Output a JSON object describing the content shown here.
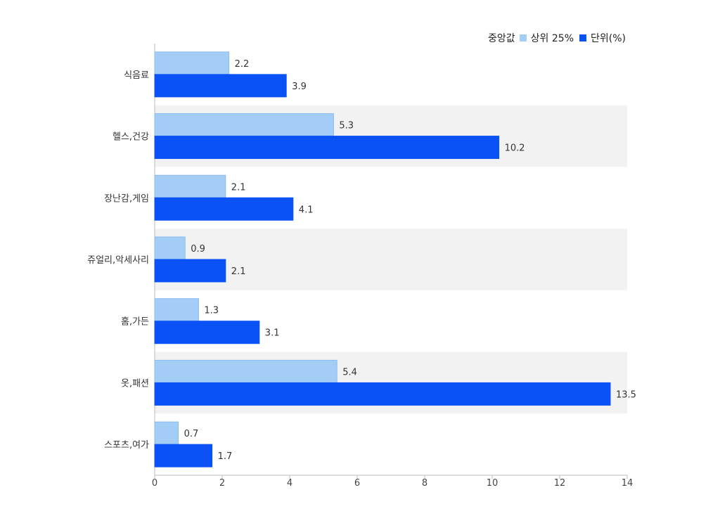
{
  "legend": {
    "prefix": "중앙값",
    "items": [
      {
        "label": "상위 25%",
        "color": "#a3cdf5"
      },
      {
        "label": "단위(%)",
        "color": "#0a52f5"
      }
    ]
  },
  "chart_data": {
    "type": "bar",
    "orientation": "horizontal",
    "categories": [
      "식음료",
      "헬스,건강",
      "장난감,게임",
      "쥬얼리,악세사리",
      "홈,가든",
      "옷,패션",
      "스포츠,여가"
    ],
    "series": [
      {
        "name": "상위 25%",
        "color": "#a3cdf5",
        "values": [
          2.2,
          5.3,
          2.1,
          0.9,
          1.3,
          5.4,
          0.7
        ]
      },
      {
        "name": "단위(%)",
        "color": "#0a52f5",
        "values": [
          3.9,
          10.2,
          4.1,
          2.1,
          3.1,
          13.5,
          1.7
        ]
      }
    ],
    "xlim": [
      0,
      14
    ],
    "xticks": [
      0,
      2,
      4,
      6,
      8,
      10,
      12,
      14
    ],
    "title": "",
    "xlabel": "",
    "ylabel": "",
    "legend_position": "top-right",
    "band_color": "#f2f2f2"
  }
}
